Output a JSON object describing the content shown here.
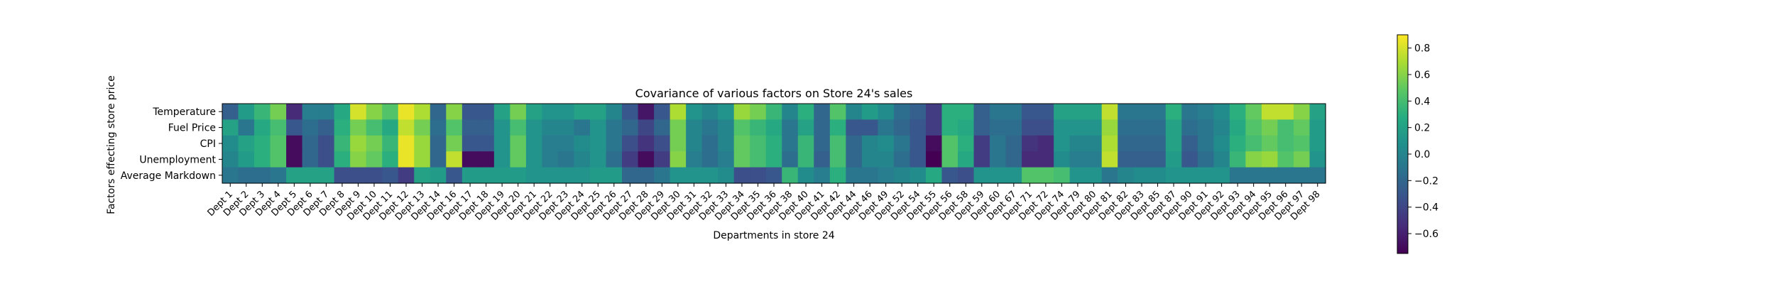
{
  "chart_data": {
    "type": "heatmap",
    "title": "Covariance of various factors on Store 24's sales",
    "xlabel": "Departments in store 24",
    "ylabel": "Factors effecting store price",
    "colormap": "viridis",
    "color_range": [
      -0.75,
      0.9
    ],
    "colorbar_ticks": [
      0.8,
      0.6,
      0.4,
      0.2,
      0.0,
      -0.2,
      -0.4,
      -0.6
    ],
    "colorbar_tick_labels": [
      "0.8",
      "0.6",
      "0.4",
      "0.2",
      "0.0",
      "−0.2",
      "−0.4",
      "−0.6"
    ],
    "rows": [
      "Temperature",
      "Fuel Price",
      "CPI",
      "Unemployment",
      "Average Markdown"
    ],
    "columns": [
      "Dept 1",
      "Dept 2",
      "Dept 3",
      "Dept 4",
      "Dept 5",
      "Dept 6",
      "Dept 7",
      "Dept 8",
      "Dept 9",
      "Dept 10",
      "Dept 11",
      "Dept 12",
      "Dept 13",
      "Dept 14",
      "Dept 16",
      "Dept 17",
      "Dept 18",
      "Dept 19",
      "Dept 20",
      "Dept 21",
      "Dept 22",
      "Dept 23",
      "Dept 24",
      "Dept 25",
      "Dept 26",
      "Dept 27",
      "Dept 28",
      "Dept 29",
      "Dept 30",
      "Dept 31",
      "Dept 32",
      "Dept 33",
      "Dept 34",
      "Dept 35",
      "Dept 36",
      "Dept 38",
      "Dept 40",
      "Dept 41",
      "Dept 42",
      "Dept 44",
      "Dept 46",
      "Dept 49",
      "Dept 52",
      "Dept 54",
      "Dept 55",
      "Dept 56",
      "Dept 58",
      "Dept 59",
      "Dept 60",
      "Dept 67",
      "Dept 71",
      "Dept 72",
      "Dept 74",
      "Dept 79",
      "Dept 80",
      "Dept 81",
      "Dept 82",
      "Dept 83",
      "Dept 85",
      "Dept 87",
      "Dept 90",
      "Dept 91",
      "Dept 92",
      "Dept 93",
      "Dept 94",
      "Dept 95",
      "Dept 96",
      "Dept 97",
      "Dept 98"
    ],
    "values": [
      [
        -0.25,
        0.15,
        0.35,
        0.55,
        -0.55,
        -0.05,
        -0.05,
        0.25,
        0.8,
        0.6,
        0.45,
        0.85,
        0.7,
        -0.2,
        0.6,
        -0.3,
        -0.3,
        0.2,
        0.55,
        0.2,
        0.1,
        0.1,
        0.2,
        0.2,
        0.0,
        -0.3,
        -0.65,
        -0.3,
        0.7,
        0.1,
        0.0,
        0.1,
        0.65,
        0.55,
        0.35,
        0.0,
        0.3,
        -0.2,
        0.45,
        0.0,
        0.15,
        0.05,
        -0.15,
        -0.25,
        -0.45,
        0.3,
        0.3,
        -0.25,
        -0.1,
        -0.1,
        -0.3,
        -0.3,
        0.2,
        0.2,
        0.2,
        0.75,
        -0.1,
        -0.1,
        -0.1,
        0.3,
        -0.1,
        -0.05,
        0.05,
        0.3,
        0.5,
        0.75,
        0.75,
        0.6,
        0.2
      ],
      [
        0.2,
        -0.1,
        0.25,
        0.4,
        -0.3,
        -0.15,
        -0.25,
        0.3,
        0.55,
        0.4,
        0.25,
        0.75,
        0.55,
        -0.15,
        0.45,
        -0.25,
        -0.25,
        0.1,
        0.4,
        0.1,
        0.0,
        0.0,
        -0.1,
        0.1,
        -0.1,
        -0.2,
        -0.4,
        -0.2,
        0.55,
        0.0,
        -0.1,
        0.0,
        0.45,
        0.35,
        0.25,
        -0.1,
        0.2,
        -0.2,
        0.3,
        -0.3,
        -0.3,
        -0.1,
        -0.2,
        -0.3,
        -0.45,
        0.3,
        0.25,
        -0.25,
        -0.15,
        -0.15,
        -0.35,
        -0.35,
        0.1,
        0.1,
        0.1,
        0.65,
        -0.15,
        -0.15,
        -0.15,
        0.2,
        -0.15,
        -0.1,
        0.0,
        0.25,
        0.45,
        0.55,
        0.4,
        0.5,
        0.15
      ],
      [
        0.05,
        0.2,
        0.3,
        0.45,
        -0.7,
        -0.2,
        -0.35,
        0.35,
        0.65,
        0.55,
        0.35,
        0.85,
        0.65,
        -0.2,
        0.55,
        -0.3,
        -0.3,
        0.1,
        0.5,
        0.1,
        -0.05,
        -0.05,
        0.05,
        0.1,
        -0.1,
        -0.35,
        -0.5,
        -0.35,
        0.55,
        0.0,
        -0.15,
        0.0,
        0.5,
        0.4,
        0.3,
        -0.1,
        0.35,
        -0.2,
        0.4,
        -0.2,
        0.0,
        0.05,
        -0.1,
        -0.3,
        -0.7,
        0.45,
        0.3,
        -0.45,
        -0.1,
        -0.2,
        -0.5,
        -0.55,
        0.1,
        0.0,
        0.0,
        0.7,
        -0.2,
        -0.2,
        -0.2,
        0.2,
        -0.25,
        -0.1,
        0.05,
        0.3,
        0.4,
        0.5,
        0.4,
        0.45,
        0.15
      ],
      [
        0.0,
        0.15,
        0.3,
        0.45,
        -0.7,
        -0.2,
        -0.35,
        0.3,
        0.6,
        0.5,
        0.3,
        0.85,
        0.65,
        -0.2,
        0.75,
        -0.7,
        -0.7,
        0.1,
        0.5,
        0.1,
        -0.05,
        -0.1,
        0.0,
        0.1,
        -0.15,
        -0.45,
        -0.7,
        -0.45,
        0.6,
        -0.05,
        -0.15,
        -0.05,
        0.5,
        0.4,
        0.3,
        -0.15,
        0.35,
        -0.25,
        0.4,
        -0.2,
        0.0,
        0.0,
        -0.15,
        -0.3,
        -0.75,
        0.45,
        0.25,
        -0.45,
        -0.1,
        -0.2,
        -0.55,
        -0.55,
        0.05,
        -0.05,
        -0.05,
        0.75,
        -0.25,
        -0.25,
        -0.25,
        0.15,
        -0.3,
        -0.15,
        0.0,
        0.35,
        0.6,
        0.65,
        0.45,
        0.55,
        0.1
      ],
      [
        -0.1,
        -0.15,
        -0.15,
        -0.1,
        0.2,
        0.2,
        0.2,
        -0.35,
        -0.35,
        -0.35,
        -0.3,
        -0.45,
        0.2,
        0.15,
        -0.3,
        0.15,
        0.15,
        0.15,
        0.15,
        0.1,
        0.1,
        0.1,
        0.1,
        0.15,
        0.15,
        -0.2,
        -0.2,
        -0.1,
        0.1,
        0.1,
        0.1,
        0.05,
        -0.35,
        -0.35,
        -0.3,
        0.35,
        0.05,
        -0.05,
        0.3,
        -0.1,
        -0.1,
        -0.05,
        0.0,
        0.05,
        0.25,
        -0.3,
        -0.35,
        0.1,
        0.1,
        0.1,
        0.45,
        0.45,
        0.4,
        0.1,
        0.1,
        -0.1,
        0.0,
        0.05,
        0.05,
        0.1,
        0.1,
        0.1,
        0.1,
        -0.1,
        -0.1,
        -0.1,
        -0.1,
        -0.1,
        -0.1
      ]
    ]
  }
}
